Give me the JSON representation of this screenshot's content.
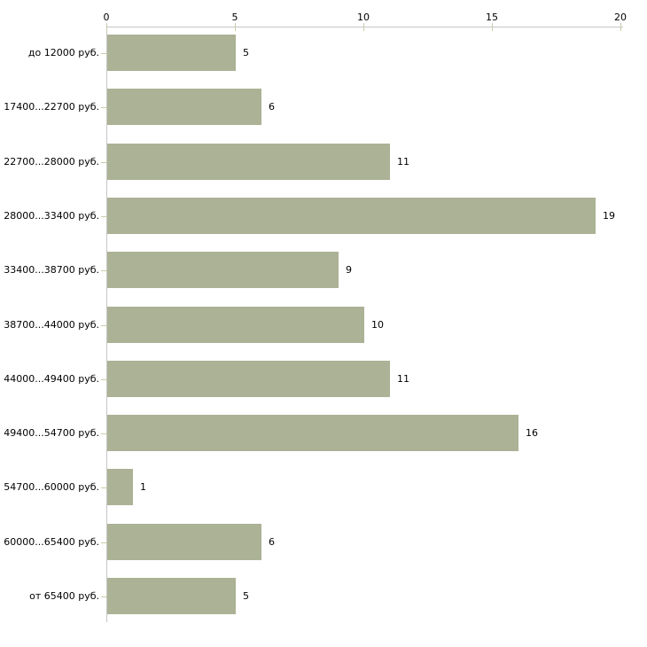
{
  "chart_data": {
    "type": "bar",
    "orientation": "horizontal",
    "title": "",
    "xlabel": "",
    "ylabel": "",
    "categories": [
      "до 12000 руб.",
      "17400...22700 руб.",
      "22700...28000 руб.",
      "28000...33400 руб.",
      "33400...38700 руб.",
      "38700...44000 руб.",
      "44000...49400 руб.",
      "49400...54700 руб.",
      "54700...60000 руб.",
      "60000...65400 руб.",
      "от 65400 руб."
    ],
    "values": [
      5,
      6,
      11,
      19,
      9,
      10,
      11,
      16,
      1,
      6,
      5
    ],
    "x_ticks": [
      0,
      5,
      10,
      15,
      20
    ],
    "xlim": [
      0,
      20
    ],
    "grid": false,
    "legend": null,
    "value_labels_shown": true,
    "colors": {
      "bar": "#abb295",
      "axis_line": "#c6c6c6",
      "tick_mark": "#c8cba6",
      "text": "#000000",
      "background": "#ffffff"
    }
  }
}
